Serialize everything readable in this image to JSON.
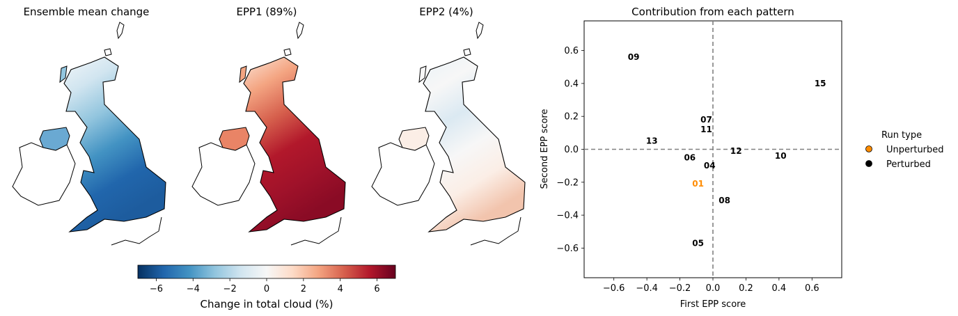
{
  "maps": [
    {
      "title": "Ensemble mean change",
      "palette": "blue"
    },
    {
      "title": "EPP1 (89%)",
      "palette": "red"
    },
    {
      "title": "EPP2 (4%)",
      "palette": "pale"
    }
  ],
  "colorbar": {
    "label": "Change in total cloud (%)",
    "ticks": [
      "−6",
      "−4",
      "−2",
      "0",
      "2",
      "4",
      "6"
    ],
    "range": [
      -7,
      7
    ],
    "colors": [
      "#053061",
      "#2166ac",
      "#4393c3",
      "#92c5de",
      "#d1e5f0",
      "#f7f7f7",
      "#fddbc7",
      "#f4a582",
      "#d6604d",
      "#b2182b",
      "#67001f"
    ]
  },
  "chart_data": {
    "type": "scatter",
    "title": "Contribution from each pattern",
    "xlabel": "First EPP score",
    "ylabel": "Second EPP score",
    "xlim": [
      -0.78,
      0.78
    ],
    "ylim": [
      -0.78,
      0.78
    ],
    "xticks": [
      -0.6,
      -0.4,
      -0.2,
      0.0,
      0.2,
      0.4,
      0.6
    ],
    "yticks": [
      -0.6,
      -0.4,
      -0.2,
      0.0,
      0.2,
      0.4,
      0.6
    ],
    "xtick_labels": [
      "−0.6",
      "−0.4",
      "−0.2",
      "0.0",
      "0.2",
      "0.4",
      "0.6"
    ],
    "ytick_labels": [
      "−0.6",
      "−0.4",
      "−0.2",
      "0.0",
      "0.2",
      "0.4",
      "0.6"
    ],
    "reference_lines": {
      "x": 0,
      "y": 0,
      "style": "dashed",
      "color": "#808080"
    },
    "points": [
      {
        "label": "01",
        "x": -0.09,
        "y": -0.21,
        "run_type": "Unperturbed"
      },
      {
        "label": "04",
        "x": -0.02,
        "y": -0.1,
        "run_type": "Perturbed"
      },
      {
        "label": "05",
        "x": -0.09,
        "y": -0.57,
        "run_type": "Perturbed"
      },
      {
        "label": "06",
        "x": -0.14,
        "y": -0.05,
        "run_type": "Perturbed"
      },
      {
        "label": "07",
        "x": -0.04,
        "y": 0.18,
        "run_type": "Perturbed"
      },
      {
        "label": "08",
        "x": 0.07,
        "y": -0.31,
        "run_type": "Perturbed"
      },
      {
        "label": "09",
        "x": -0.48,
        "y": 0.56,
        "run_type": "Perturbed"
      },
      {
        "label": "10",
        "x": 0.41,
        "y": -0.04,
        "run_type": "Perturbed"
      },
      {
        "label": "11",
        "x": -0.04,
        "y": 0.12,
        "run_type": "Perturbed"
      },
      {
        "label": "12",
        "x": 0.14,
        "y": -0.01,
        "run_type": "Perturbed"
      },
      {
        "label": "13",
        "x": -0.37,
        "y": 0.05,
        "run_type": "Perturbed"
      },
      {
        "label": "15",
        "x": 0.65,
        "y": 0.4,
        "run_type": "Perturbed"
      }
    ],
    "legend": {
      "title": "Run type",
      "placement": "right",
      "entries": [
        {
          "label": "Unperturbed",
          "color": "#ff8c00"
        },
        {
          "label": "Perturbed",
          "color": "#000000"
        }
      ]
    }
  }
}
